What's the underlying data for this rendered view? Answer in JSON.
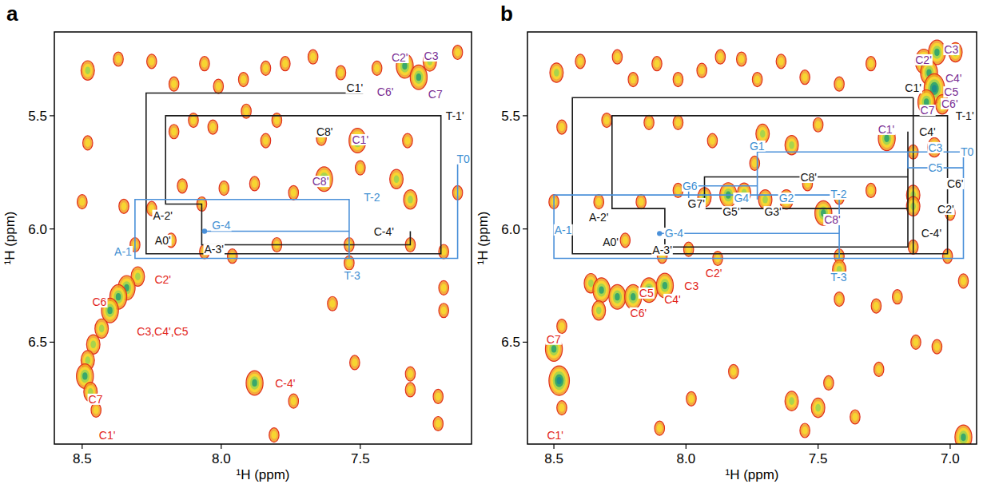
{
  "chart_data": [
    {
      "type": "contour",
      "title": "a",
      "x_label": "¹H (ppm)",
      "y_label": "¹H (ppm)",
      "xlim": [
        8.6,
        7.1
      ],
      "ylim": [
        6.95,
        5.13
      ],
      "xticks": [
        {
          "value": 8.5,
          "label": "8.5"
        },
        {
          "value": 8,
          "label": "8.0"
        },
        {
          "value": 7.5,
          "label": "7.5"
        }
      ],
      "yticks": [
        {
          "value": 5.5,
          "label": "5.5"
        },
        {
          "value": 6,
          "label": "6.0"
        },
        {
          "value": 6.5,
          "label": "6.5"
        }
      ],
      "peaks": {
        "x": [
          8.48,
          8.37,
          8.25,
          8.17,
          8.06,
          8.01,
          7.92,
          7.84,
          7.77,
          7.67,
          7.57,
          7.44,
          7.34,
          7.29,
          7.25,
          7.15,
          8.48,
          8.17,
          8.1,
          8.03,
          7.91,
          7.84,
          7.8,
          7.64,
          7.51,
          7.33,
          7.5,
          8.5,
          8.35,
          8.25,
          8.14,
          8.07,
          7.99,
          7.88,
          7.74,
          7.63,
          7.37,
          7.32,
          7.15,
          8.31,
          8.18,
          8.06,
          7.96,
          7.8,
          7.54,
          7.54,
          7.32,
          7.2,
          8.3,
          8.34,
          8.37,
          8.4,
          8.43,
          8.46,
          8.48,
          8.49,
          8.47,
          8.45,
          7.88,
          7.2,
          7.2,
          7.32,
          7.32,
          7.22,
          7.22,
          7.74,
          7.81,
          7.52,
          7.6
        ],
        "y": [
          5.3,
          5.25,
          5.26,
          5.36,
          5.27,
          5.37,
          5.34,
          5.29,
          5.27,
          5.24,
          5.31,
          5.29,
          5.28,
          5.33,
          5.26,
          5.22,
          5.62,
          5.57,
          5.52,
          5.55,
          5.48,
          5.61,
          5.52,
          5.6,
          5.61,
          5.61,
          5.73,
          5.88,
          5.9,
          5.91,
          5.81,
          5.89,
          5.82,
          5.8,
          5.84,
          5.78,
          5.78,
          5.87,
          5.84,
          6.07,
          6.05,
          6.1,
          6.12,
          6.07,
          6.07,
          6.15,
          6.07,
          6.1,
          6.21,
          6.26,
          6.3,
          6.36,
          6.44,
          6.51,
          6.58,
          6.65,
          6.72,
          6.8,
          6.68,
          6.26,
          6.36,
          6.64,
          6.71,
          6.74,
          6.86,
          6.76,
          6.91,
          6.59,
          6.33
        ],
        "levels": [
          2,
          1,
          1,
          1,
          1,
          1,
          1,
          1,
          1,
          1,
          1,
          1,
          3,
          3,
          2,
          1,
          1,
          1,
          1,
          1,
          1,
          1,
          1,
          1,
          3,
          1,
          1,
          1,
          1,
          1,
          1,
          1,
          1,
          1,
          1,
          3,
          2,
          2,
          1,
          1,
          1,
          1,
          1,
          1,
          1,
          1,
          1,
          1,
          2,
          3,
          3,
          3,
          2,
          2,
          2,
          3,
          2,
          1,
          3,
          1,
          1,
          1,
          1,
          1,
          1,
          1,
          1,
          1,
          1
        ]
      },
      "series": [
        {
          "color": "#1a1a1a",
          "x": [
            7.49,
            8.27,
            8.27,
            7.21,
            7.21,
            8.2,
            8.2,
            8.07,
            8.07,
            7.32,
            7.32
          ],
          "y": [
            5.4,
            5.4,
            6.11,
            6.11,
            5.5,
            5.5,
            5.89,
            5.89,
            6.07,
            6.07,
            6.01
          ]
        },
        {
          "color": "#4a90d9",
          "x": [
            7.15,
            7.15,
            8.31,
            8.31,
            7.54,
            7.54
          ],
          "y": [
            5.69,
            6.13,
            6.13,
            5.87,
            5.87,
            6.13
          ]
        },
        {
          "color": "#4a90d9",
          "marker": "circle",
          "x": [
            8.06,
            7.54
          ],
          "y": [
            6.01,
            6.01
          ]
        }
      ],
      "annotations": [
        {
          "text": "C1'",
          "x": 7.52,
          "y": 5.377,
          "color": "#111111"
        },
        {
          "text": "T-1'",
          "x": 7.16,
          "y": 5.5,
          "color": "#111111"
        },
        {
          "text": "C8'",
          "x": 7.628,
          "y": 5.571,
          "color": "#111111"
        },
        {
          "text": "A-2'",
          "x": 8.21,
          "y": 5.94,
          "color": "#111111"
        },
        {
          "text": "A0'",
          "x": 8.21,
          "y": 6.05,
          "color": "#111111"
        },
        {
          "text": "A-3'",
          "x": 8.026,
          "y": 6.09,
          "color": "#111111"
        },
        {
          "text": "C-4'",
          "x": 7.415,
          "y": 6.012,
          "color": "#111111"
        },
        {
          "text": "A-1",
          "x": 8.353,
          "y": 6.1,
          "color": "#3f8fd2"
        },
        {
          "text": "T-2",
          "x": 7.458,
          "y": 5.86,
          "color": "#3f8fd2"
        },
        {
          "text": "G-4",
          "x": 8.0,
          "y": 5.985,
          "color": "#3f8fd2"
        },
        {
          "text": "T-3",
          "x": 7.529,
          "y": 6.206,
          "color": "#3f8fd2"
        },
        {
          "text": "T0",
          "x": 7.13,
          "y": 5.69,
          "color": "#3f8fd2"
        },
        {
          "text": "C2'",
          "x": 7.358,
          "y": 5.243,
          "color": "#7a2e93"
        },
        {
          "text": "C3",
          "x": 7.245,
          "y": 5.236,
          "color": "#7a2e93"
        },
        {
          "text": "C6'",
          "x": 7.41,
          "y": 5.395,
          "color": "#7a2e93"
        },
        {
          "text": "C7",
          "x": 7.23,
          "y": 5.405,
          "color": "#7a2e93"
        },
        {
          "text": "C1'",
          "x": 7.5,
          "y": 5.606,
          "color": "#7a2e93"
        },
        {
          "text": "C8'",
          "x": 7.643,
          "y": 5.79,
          "color": "#7a2e93"
        },
        {
          "text": "C2'",
          "x": 8.21,
          "y": 6.223,
          "color": "#e2231a"
        },
        {
          "text": "C6",
          "x": 8.438,
          "y": 6.322,
          "color": "#e2231a"
        },
        {
          "text": "C3,C4',C5",
          "x": 8.211,
          "y": 6.453,
          "color": "#e2231a"
        },
        {
          "text": "C7",
          "x": 8.452,
          "y": 6.752,
          "color": "#e2231a"
        },
        {
          "text": "C1'",
          "x": 8.41,
          "y": 6.911,
          "color": "#e2231a"
        },
        {
          "text": "C-4'",
          "x": 7.77,
          "y": 6.682,
          "color": "#e2231a"
        }
      ]
    },
    {
      "type": "contour",
      "title": "b",
      "x_label": "¹H (ppm)",
      "y_label": "¹H (ppm)",
      "xlim": [
        8.6,
        6.9
      ],
      "ylim": [
        6.95,
        5.13
      ],
      "xticks": [
        {
          "value": 8.5,
          "label": "8.5"
        },
        {
          "value": 8,
          "label": "8.0"
        },
        {
          "value": 7.5,
          "label": "7.5"
        },
        {
          "value": 7,
          "label": "7.0"
        }
      ],
      "yticks": [
        {
          "value": 5.5,
          "label": "5.5"
        },
        {
          "value": 6,
          "label": "6.0"
        },
        {
          "value": 6.5,
          "label": "6.5"
        }
      ],
      "peaks": {
        "x": [
          8.49,
          8.4,
          8.26,
          8.2,
          8.11,
          8.03,
          7.94,
          7.87,
          7.79,
          7.73,
          7.64,
          7.55,
          7.42,
          7.3,
          7.1,
          7.05,
          7.08,
          7.06,
          7.09,
          7.03,
          6.98,
          8.47,
          8.3,
          8.14,
          8.03,
          7.9,
          7.71,
          7.6,
          7.5,
          7.24,
          7.06,
          7.14,
          7.74,
          8.5,
          8.33,
          8.17,
          8.03,
          7.93,
          7.84,
          7.78,
          7.7,
          7.62,
          7.54,
          7.48,
          7.42,
          7.3,
          7.14,
          7.14,
          7.0,
          8.23,
          8.09,
          7.99,
          7.88,
          7.42,
          7.42,
          7.14,
          7.01,
          6.95,
          8.36,
          8.32,
          8.26,
          8.2,
          8.14,
          8.08,
          8.33,
          8.47,
          8.5,
          8.48,
          8.47,
          7.42,
          7.2,
          7.28,
          7.13,
          7.05,
          7.27,
          7.46,
          7.6,
          7.5,
          7.36,
          7.55,
          8.1,
          7.98,
          6.95,
          7.82
        ],
        "y": [
          5.31,
          5.26,
          5.24,
          5.34,
          5.27,
          5.34,
          5.3,
          5.24,
          5.25,
          5.34,
          5.26,
          5.33,
          5.36,
          5.27,
          5.26,
          5.22,
          5.31,
          5.38,
          5.44,
          5.45,
          5.22,
          5.55,
          5.52,
          5.53,
          5.53,
          5.61,
          5.58,
          5.63,
          5.54,
          5.6,
          5.64,
          5.66,
          5.71,
          5.88,
          5.88,
          5.88,
          5.83,
          5.86,
          5.85,
          5.84,
          5.87,
          5.87,
          5.8,
          5.93,
          5.86,
          5.83,
          5.85,
          5.9,
          5.93,
          6.05,
          6.12,
          6.09,
          6.13,
          6.12,
          6.18,
          6.08,
          6.12,
          6.23,
          6.24,
          6.27,
          6.3,
          6.3,
          6.27,
          6.25,
          6.36,
          6.43,
          6.53,
          6.67,
          6.79,
          6.31,
          6.3,
          6.34,
          6.5,
          6.52,
          6.62,
          6.68,
          6.76,
          6.79,
          6.83,
          6.89,
          6.88,
          6.75,
          6.92,
          6.63
        ],
        "levels": [
          2,
          1,
          1,
          1,
          1,
          1,
          1,
          1,
          1,
          1,
          1,
          1,
          1,
          1,
          3,
          3,
          3,
          4,
          3,
          2,
          2,
          1,
          1,
          1,
          1,
          1,
          2,
          2,
          1,
          3,
          2,
          1,
          1,
          1,
          1,
          1,
          1,
          2,
          3,
          2,
          2,
          2,
          1,
          3,
          1,
          1,
          2,
          2,
          1,
          1,
          1,
          1,
          1,
          1,
          2,
          1,
          1,
          1,
          2,
          3,
          3,
          3,
          3,
          3,
          2,
          1,
          3,
          4,
          1,
          1,
          1,
          1,
          1,
          1,
          1,
          1,
          2,
          2,
          1,
          1,
          1,
          1,
          3,
          1
        ]
      },
      "series": [
        {
          "color": "#1a1a1a",
          "x": [
            7.14,
            8.43,
            8.43,
            7.01,
            7.01,
            8.28,
            8.28,
            8.08,
            8.08,
            7.16,
            7.16
          ],
          "y": [
            5.42,
            5.42,
            6.11,
            6.11,
            5.5,
            5.5,
            5.91,
            5.91,
            6.08,
            6.08,
            5.57
          ]
        },
        {
          "color": "#1a1a1a",
          "x": [
            7.14,
            7.14
          ],
          "y": [
            5.42,
            6.11
          ]
        },
        {
          "color": "#1a1a1a",
          "x": [
            7.16,
            7.93,
            7.93,
            7.16
          ],
          "y": [
            5.77,
            5.77,
            5.91,
            5.91
          ]
        },
        {
          "color": "#4a90d9",
          "x": [
            7.16,
            6.95,
            6.95,
            8.5,
            8.5,
            7.42,
            7.42
          ],
          "y": [
            5.66,
            5.66,
            6.13,
            6.13,
            5.85,
            5.85,
            6.13
          ]
        },
        {
          "color": "#4a90d9",
          "marker": "circle",
          "x": [
            8.1,
            7.42
          ],
          "y": [
            6.02,
            6.02
          ]
        },
        {
          "color": "#4a90d9",
          "x": [
            7.16,
            7.73,
            7.73
          ],
          "y": [
            5.66,
            5.66,
            5.87
          ]
        },
        {
          "color": "#4a90d9",
          "x": [
            7.99,
            7.99,
            7.73
          ],
          "y": [
            5.87,
            5.81,
            5.81
          ]
        },
        {
          "color": "#4a90d9",
          "x": [
            7.16,
            7.16,
            6.95
          ],
          "y": [
            5.66,
            5.73,
            5.73
          ]
        }
      ],
      "annotations": [
        {
          "text": "C3",
          "x": 6.996,
          "y": 5.208,
          "color": "#7a2e93"
        },
        {
          "text": "C2'",
          "x": 7.101,
          "y": 5.253,
          "color": "#7a2e93"
        },
        {
          "text": "C4'",
          "x": 6.987,
          "y": 5.335,
          "color": "#7a2e93"
        },
        {
          "text": "C5",
          "x": 6.996,
          "y": 5.395,
          "color": "#7a2e93"
        },
        {
          "text": "C6'",
          "x": 7.002,
          "y": 5.447,
          "color": "#7a2e93"
        },
        {
          "text": "C7",
          "x": 7.086,
          "y": 5.476,
          "color": "#7a2e93"
        },
        {
          "text": "C1'",
          "x": 7.242,
          "y": 5.56,
          "color": "#7a2e93"
        },
        {
          "text": "C8'",
          "x": 7.446,
          "y": 5.959,
          "color": "#7a2e93"
        },
        {
          "text": "C1'",
          "x": 7.14,
          "y": 5.377,
          "color": "#111111"
        },
        {
          "text": "T-1'",
          "x": 6.945,
          "y": 5.5,
          "color": "#111111"
        },
        {
          "text": "C4'",
          "x": 7.086,
          "y": 5.571,
          "color": "#111111"
        },
        {
          "text": "C6'",
          "x": 6.981,
          "y": 5.8,
          "color": "#111111"
        },
        {
          "text": "C2'",
          "x": 7.017,
          "y": 5.913,
          "color": "#111111"
        },
        {
          "text": "C8'",
          "x": 7.536,
          "y": 5.772,
          "color": "#111111"
        },
        {
          "text": "G7'",
          "x": 7.961,
          "y": 5.888,
          "color": "#111111"
        },
        {
          "text": "G5'",
          "x": 7.829,
          "y": 5.924,
          "color": "#111111"
        },
        {
          "text": "G3'",
          "x": 7.671,
          "y": 5.924,
          "color": "#111111"
        },
        {
          "text": "A-2'",
          "x": 8.33,
          "y": 5.948,
          "color": "#111111"
        },
        {
          "text": "A0'",
          "x": 8.285,
          "y": 6.058,
          "color": "#111111"
        },
        {
          "text": "A-3'",
          "x": 8.09,
          "y": 6.093,
          "color": "#111111"
        },
        {
          "text": "C-4'",
          "x": 7.071,
          "y": 6.019,
          "color": "#111111"
        },
        {
          "text": "G1",
          "x": 7.731,
          "y": 5.634,
          "color": "#3f8fd2"
        },
        {
          "text": "C3",
          "x": 7.056,
          "y": 5.641,
          "color": "#3f8fd2"
        },
        {
          "text": "C5",
          "x": 7.056,
          "y": 5.73,
          "color": "#3f8fd2"
        },
        {
          "text": "T0",
          "x": 6.936,
          "y": 5.659,
          "color": "#3f8fd2"
        },
        {
          "text": "G6",
          "x": 7.985,
          "y": 5.81,
          "color": "#3f8fd2"
        },
        {
          "text": "G4",
          "x": 7.79,
          "y": 5.864,
          "color": "#3f8fd2"
        },
        {
          "text": "G2",
          "x": 7.62,
          "y": 5.864,
          "color": "#3f8fd2"
        },
        {
          "text": "T-2",
          "x": 7.422,
          "y": 5.846,
          "color": "#3f8fd2"
        },
        {
          "text": "G-4",
          "x": 8.045,
          "y": 6.019,
          "color": "#3f8fd2"
        },
        {
          "text": "T-3",
          "x": 7.422,
          "y": 6.213,
          "color": "#3f8fd2"
        },
        {
          "text": "A-1",
          "x": 8.465,
          "y": 6.004,
          "color": "#3f8fd2"
        },
        {
          "text": "C2'",
          "x": 7.895,
          "y": 6.195,
          "color": "#e2231a"
        },
        {
          "text": "C3",
          "x": 7.979,
          "y": 6.251,
          "color": "#e2231a"
        },
        {
          "text": "C4'",
          "x": 8.051,
          "y": 6.311,
          "color": "#e2231a"
        },
        {
          "text": "C5",
          "x": 8.15,
          "y": 6.283,
          "color": "#e2231a"
        },
        {
          "text": "C6'",
          "x": 8.18,
          "y": 6.371,
          "color": "#e2231a"
        },
        {
          "text": "C7",
          "x": 8.501,
          "y": 6.487,
          "color": "#e2231a"
        },
        {
          "text": "C1'",
          "x": 8.495,
          "y": 6.911,
          "color": "#e2231a"
        }
      ]
    }
  ]
}
